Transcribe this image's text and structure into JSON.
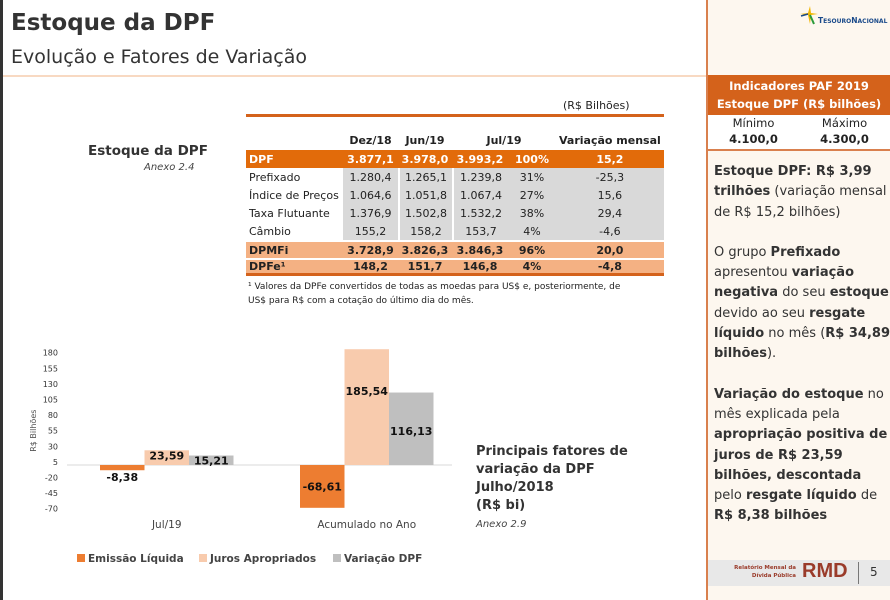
{
  "header": {
    "title": "Estoque da DPF",
    "subtitle": "Evolução e Fatores de Variação"
  },
  "logo": {
    "text": "TesouroNacional"
  },
  "stock_label": "Estoque da DPF",
  "stock_annex": "Anexo 2.4",
  "table": {
    "unit": "(R$ Bilhões)",
    "columns": [
      "",
      "Dez/18",
      "Jun/19",
      "Jul/19",
      "",
      "Variação mensal"
    ],
    "rows": [
      {
        "label": "DPF",
        "values": [
          "3.877,1",
          "3.978,0",
          "3.993,2",
          "100%",
          "15,2"
        ]
      },
      {
        "label": "Prefixado",
        "values": [
          "1.280,4",
          "1.265,1",
          "1.239,8",
          "31%",
          "-25,3"
        ]
      },
      {
        "label": "Índice de Preços",
        "values": [
          "1.064,6",
          "1.051,8",
          "1.067,4",
          "27%",
          "15,6"
        ]
      },
      {
        "label": "Taxa Flutuante",
        "values": [
          "1.376,9",
          "1.502,8",
          "1.532,2",
          "38%",
          "29,4"
        ]
      },
      {
        "label": "Câmbio",
        "values": [
          "155,2",
          "158,2",
          "153,7",
          "4%",
          "-4,6"
        ]
      },
      {
        "label": "DPMFi",
        "values": [
          "3.728,9",
          "3.826,3",
          "3.846,3",
          "96%",
          "20,0"
        ]
      },
      {
        "label": "DPFe¹",
        "values": [
          "148,2",
          "151,7",
          "146,8",
          "4%",
          "-4,8"
        ]
      }
    ],
    "footnote": "¹ Valores da DPFe convertidos de todas as moedas para US$ e, posteriormente, de US$ para R$ com a cotação do último dia do mês."
  },
  "chart_title": [
    "Principais fatores de",
    "variação da DPF",
    "Julho/2018",
    "(R$ bi)"
  ],
  "chart_annex": "Anexo 2.9",
  "chart_data": {
    "type": "bar",
    "categories": [
      "Jul/19",
      "Acumulado no Ano"
    ],
    "series": [
      {
        "name": "Emissão Líquida",
        "color": "#ed7d31",
        "values": [
          -8.38,
          -68.61
        ],
        "labels": [
          "-8,38",
          "-68,61"
        ]
      },
      {
        "name": "Juros Apropriados",
        "color": "#f8cbad",
        "values": [
          23.59,
          185.54
        ],
        "labels": [
          "23,59",
          "185,54"
        ]
      },
      {
        "name": "Variação DPF",
        "color": "#bfbfbf",
        "values": [
          15.21,
          116.13
        ],
        "labels": [
          "15,21",
          "116,13"
        ]
      }
    ],
    "ylabel": "R$ Bilhões",
    "yticks": [
      180,
      155,
      130,
      105,
      80,
      55,
      30,
      5,
      -20,
      -45,
      -70
    ],
    "ylim": [
      -70,
      180
    ],
    "legend": "bottom"
  },
  "panel": {
    "paf_title": "Indicadores PAF 2019",
    "paf_subtitle": "Estoque DPF (R$ bilhões)",
    "min_label": "Mínimo",
    "max_label": "Máximo",
    "min_value": "4.100,0",
    "max_value": "4.300,0",
    "p1": [
      [
        "b",
        "Estoque DPF: R$ 3,99 trilhões"
      ],
      [
        "n",
        " (variação mensal de R$ 15,2 bilhões)"
      ]
    ],
    "p2": [
      [
        "n",
        "O grupo "
      ],
      [
        "b",
        "Prefixado"
      ],
      [
        "n",
        " apresentou "
      ],
      [
        "b",
        "variação negativa"
      ],
      [
        "n",
        " do seu "
      ],
      [
        "b",
        "estoque"
      ],
      [
        "n",
        " devido ao seu "
      ],
      [
        "b",
        "resgate líquido"
      ],
      [
        "n",
        " no mês ("
      ],
      [
        "b",
        "R$ 34,89 bilhões"
      ],
      [
        "n",
        ")."
      ]
    ],
    "p3": [
      [
        "b",
        "Variação do estoque"
      ],
      [
        "n",
        " no mês explicada pela "
      ],
      [
        "b",
        "apropriação positiva de juros de R$ 23,59 bilhões, descontada"
      ],
      [
        "n",
        " pelo "
      ],
      [
        "b",
        "resgate líquido"
      ],
      [
        "n",
        " de "
      ],
      [
        "b",
        "R$ 8,38 bilhões"
      ]
    ]
  },
  "footer": {
    "report": "Relatório Mensal da Dívida Pública",
    "brand": "RMD",
    "page": "5"
  }
}
